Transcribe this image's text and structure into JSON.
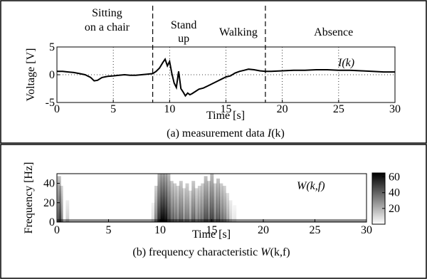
{
  "chart_data": [
    {
      "type": "line",
      "caption_prefix": "(a) measurement data ",
      "caption_var": "I",
      "caption_args": "(k)",
      "series_label": "I(k)",
      "xlabel": "Time [s]",
      "ylabel": "Voltage [V]",
      "xlim": [
        0,
        30
      ],
      "ylim": [
        -5,
        5
      ],
      "xticks": [
        "0",
        "5",
        "10",
        "15",
        "20",
        "25",
        "30"
      ],
      "yticks": [
        "5",
        "0",
        "-5"
      ],
      "phase_boundaries": [
        8.5,
        18.5
      ],
      "phases": [
        {
          "lines": [
            "Sitting",
            "on a chair"
          ]
        },
        {
          "lines": [
            "Stand",
            "up"
          ]
        },
        {
          "lines": [
            "Walking"
          ]
        },
        {
          "lines": [
            "Absence"
          ]
        }
      ],
      "series": [
        {
          "x": [
            0,
            0.5,
            1,
            1.5,
            2,
            2.5,
            3,
            3.3,
            3.6,
            4,
            4.5,
            5,
            5.5,
            6,
            6.5,
            7,
            7.5,
            8,
            8.5,
            8.8,
            9.1,
            9.4,
            9.6,
            9.8,
            10,
            10.2,
            10.4,
            10.6,
            10.8,
            11,
            11.2,
            11.4,
            11.6,
            11.8,
            12,
            12.3,
            12.6,
            13,
            13.4,
            13.8,
            14.2,
            14.6,
            15,
            15.4,
            15.8,
            16.2,
            16.6,
            17,
            17.5,
            18,
            18.5,
            19,
            20,
            21,
            22,
            23,
            24,
            25,
            26,
            27,
            28,
            29,
            30
          ],
          "y": [
            0.6,
            0.6,
            0.5,
            0.4,
            0.2,
            0,
            -0.5,
            -1.1,
            -1.0,
            -0.5,
            -0.3,
            -0.2,
            -0.1,
            0,
            -0.1,
            -0.1,
            0,
            0.1,
            0.2,
            0.6,
            1.2,
            2.2,
            2.8,
            1.6,
            2.4,
            0.2,
            -1.5,
            -2.3,
            0.6,
            -2.5,
            -3.1,
            -3.8,
            -3.3,
            -3.6,
            -3.4,
            -3.0,
            -2.6,
            -2.4,
            -2.0,
            -1.6,
            -1.2,
            -0.8,
            -0.4,
            -0.2,
            0.3,
            0.6,
            0.8,
            1.0,
            0.9,
            0.7,
            0.6,
            0.6,
            0.7,
            0.8,
            0.8,
            0.9,
            0.9,
            0.8,
            0.8,
            0.7,
            0.6,
            0.5,
            0.5
          ]
        }
      ]
    },
    {
      "type": "heatmap",
      "caption_prefix": "(b) frequency characteristic ",
      "caption_var": "W",
      "caption_args": "(k,f)",
      "series_label": "W(k,f)",
      "xlabel": "Time [s]",
      "ylabel": "Frequency [Hz]",
      "xlim": [
        0,
        30
      ],
      "ylim": [
        0,
        50
      ],
      "xticks": [
        "0",
        "5",
        "10",
        "15",
        "20",
        "25",
        "30"
      ],
      "yticks": [
        "40",
        "20",
        "0"
      ],
      "colorbar_ticks": [
        "60",
        "40",
        "20"
      ],
      "colorbar_range": [
        0,
        65
      ],
      "intensity_profile": [
        {
          "t": 0.2,
          "w": 0.7
        },
        {
          "t": 0.4,
          "w": 0.5
        },
        {
          "t": 1.0,
          "w": 0.2
        },
        {
          "t": 9.3,
          "w": 0.15
        },
        {
          "t": 9.6,
          "w": 0.5
        },
        {
          "t": 9.9,
          "w": 0.85
        },
        {
          "t": 10.2,
          "w": 1.0
        },
        {
          "t": 10.5,
          "w": 0.95
        },
        {
          "t": 10.8,
          "w": 0.75
        },
        {
          "t": 11.1,
          "w": 0.6
        },
        {
          "t": 11.4,
          "w": 0.55
        },
        {
          "t": 11.7,
          "w": 0.5
        },
        {
          "t": 12.0,
          "w": 0.6
        },
        {
          "t": 12.3,
          "w": 0.45
        },
        {
          "t": 12.6,
          "w": 0.55
        },
        {
          "t": 12.9,
          "w": 0.4
        },
        {
          "t": 13.2,
          "w": 0.6
        },
        {
          "t": 13.5,
          "w": 0.45
        },
        {
          "t": 13.8,
          "w": 0.5
        },
        {
          "t": 14.1,
          "w": 0.55
        },
        {
          "t": 14.4,
          "w": 0.7
        },
        {
          "t": 14.7,
          "w": 0.6
        },
        {
          "t": 15.0,
          "w": 0.75
        },
        {
          "t": 15.3,
          "w": 0.55
        },
        {
          "t": 15.6,
          "w": 0.65
        },
        {
          "t": 15.9,
          "w": 0.55
        },
        {
          "t": 16.2,
          "w": 0.5
        },
        {
          "t": 16.5,
          "w": 0.35
        },
        {
          "t": 16.8,
          "w": 0.2
        },
        {
          "t": 17.2,
          "w": 0.1
        }
      ]
    }
  ]
}
